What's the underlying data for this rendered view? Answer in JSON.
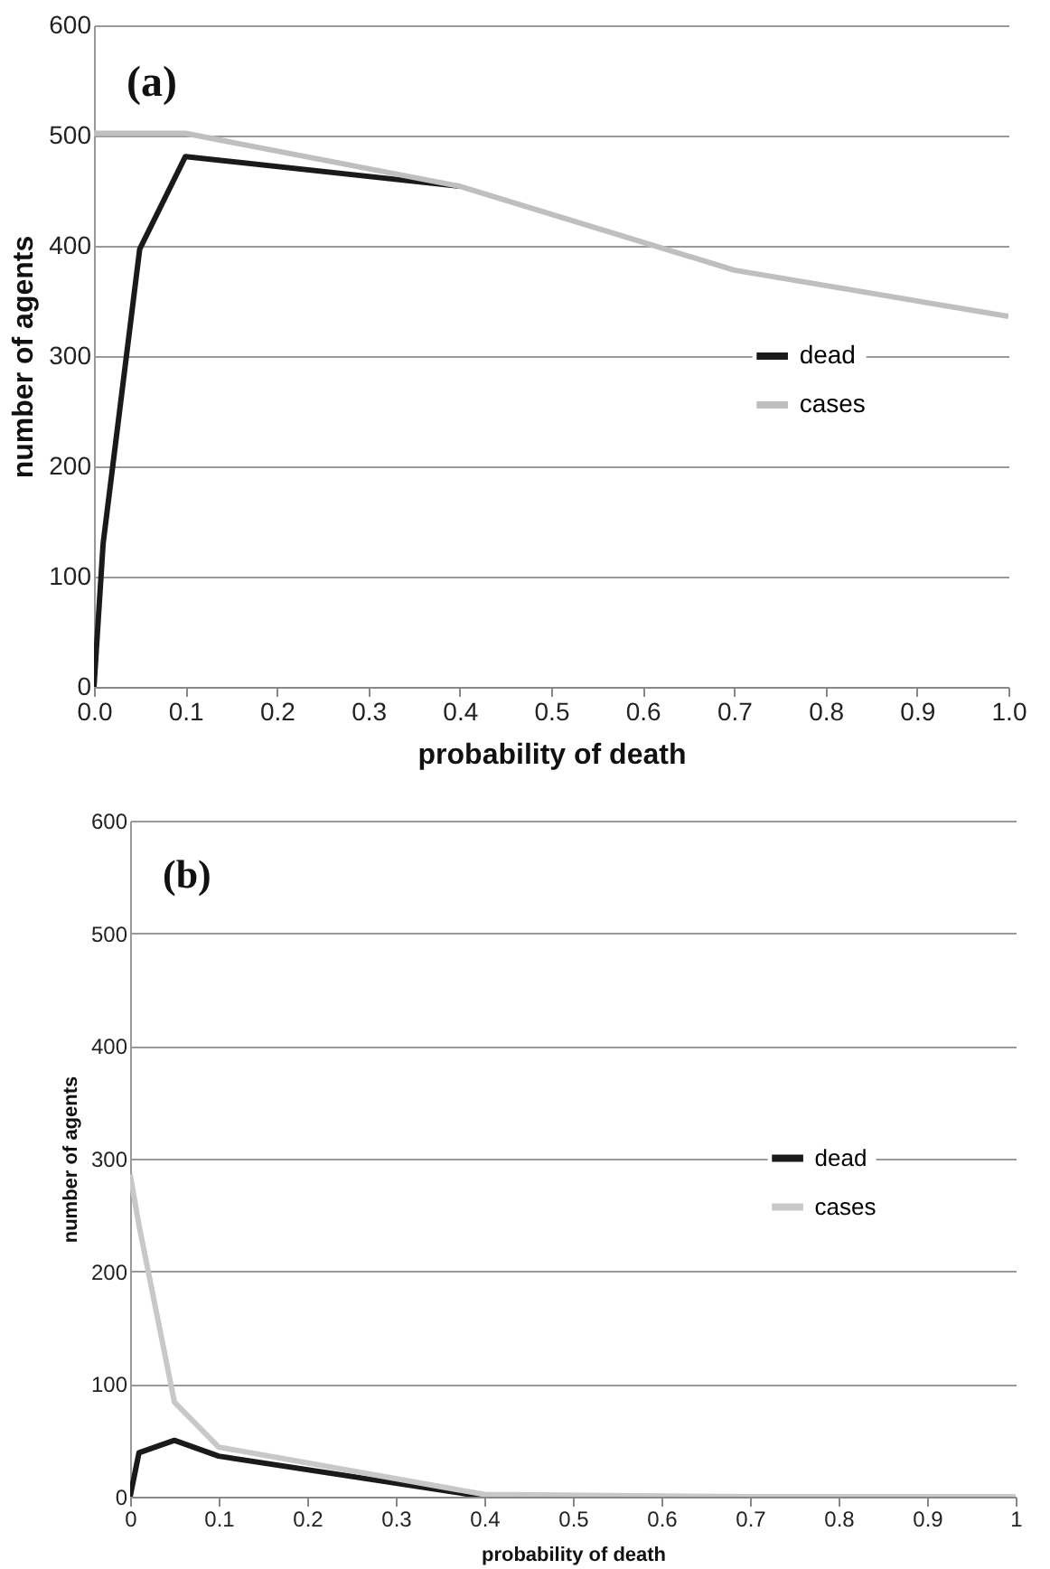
{
  "chart_data": [
    {
      "type": "line",
      "annotations": [
        "(a)"
      ],
      "xlabel": "probability of death",
      "ylabel": "number of  agents",
      "x": [
        0,
        0.01,
        0.05,
        0.1,
        0.4,
        0.7,
        1.0
      ],
      "series": [
        {
          "name": "dead",
          "color": "#1a1a1a",
          "values": [
            0,
            130,
            397,
            481,
            454,
            null,
            null
          ]
        },
        {
          "name": "cases",
          "color": "#bfbfbf",
          "values": [
            502,
            502,
            502,
            502,
            454,
            378,
            336
          ]
        }
      ],
      "xlim": [
        0,
        1
      ],
      "ylim": [
        0,
        600
      ],
      "xticks": [
        {
          "value": 0,
          "label": "0.0"
        },
        0.1,
        0.2,
        0.3,
        0.4,
        0.5,
        0.6,
        0.7,
        0.8,
        0.9,
        {
          "value": 1,
          "label": "1.0"
        }
      ],
      "yticks": [
        0,
        100,
        200,
        300,
        400,
        500,
        600
      ],
      "grid": "y",
      "legend": "right",
      "marker": "none"
    },
    {
      "type": "line",
      "annotations": [
        "(b)"
      ],
      "xlabel": "probability of death",
      "ylabel": "number of agents",
      "x": [
        0,
        0.01,
        0.05,
        0.1,
        0.4,
        0.7,
        1
      ],
      "series": [
        {
          "name": "dead",
          "color": "#1a1a1a",
          "values": [
            0,
            39,
            50,
            36,
            0,
            null,
            null
          ]
        },
        {
          "name": "cases",
          "color": "#c8c8c8",
          "values": [
            286,
            241,
            84,
            44,
            2,
            0,
            0
          ]
        }
      ],
      "xlim": [
        0,
        1
      ],
      "ylim": [
        0,
        600
      ],
      "xticks": [
        0,
        0.1,
        0.2,
        0.3,
        0.4,
        0.5,
        0.6,
        0.7,
        0.8,
        0.9,
        1
      ],
      "yticks": [
        0,
        100,
        200,
        300,
        400,
        500,
        600
      ],
      "grid": "y",
      "legend": "right",
      "marker": "none"
    }
  ]
}
